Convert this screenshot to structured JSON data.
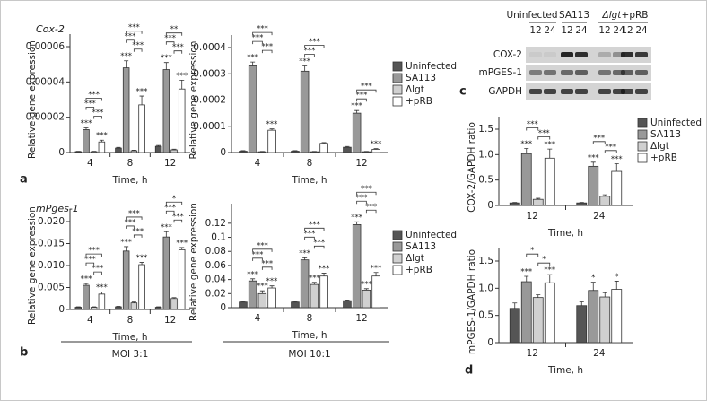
{
  "figure": {
    "panels": [
      "a",
      "b",
      "c",
      "d"
    ],
    "groups": [
      "MOI 3:1",
      "MOI 10:1"
    ],
    "blot": {
      "groups": [
        "Uninfected",
        "SA113",
        "Δlgt",
        "+pRB"
      ],
      "lanes": [
        "12",
        "24",
        "12",
        "24",
        "12",
        "24",
        "12",
        "24"
      ],
      "rows": [
        "COX-2",
        "mPGES-1",
        "GAPDH"
      ]
    }
  },
  "chart_data": [
    {
      "type": "bar",
      "title": "Cox-2",
      "y_label": "Relative gene expression",
      "x_label": "Time, h",
      "categories": [
        "4",
        "8",
        "12"
      ],
      "ylim": [
        0,
        6e-05
      ],
      "yticks": [
        0,
        2e-05,
        4e-05,
        6e-05
      ],
      "series": [
        {
          "name": "Uninfected",
          "color": "#555555",
          "values": [
            5e-07,
            2.5e-06,
            3.5e-06
          ],
          "errors": [
            2e-07,
            4e-07,
            5e-07
          ],
          "significance": [
            null,
            null,
            null
          ]
        },
        {
          "name": "SA113",
          "color": "#999999",
          "values": [
            1.3e-05,
            4.8e-05,
            4.7e-05
          ],
          "errors": [
            1e-06,
            4e-06,
            4e-06
          ],
          "significance": [
            "***",
            "***",
            "***"
          ]
        },
        {
          "name": "Δlgt",
          "color": "#d0d0d0",
          "values": [
            5e-07,
            1e-06,
            1.5e-06
          ],
          "errors": [
            2e-07,
            3e-07,
            4e-07
          ],
          "significance": [
            null,
            null,
            null
          ]
        },
        {
          "name": "+pRB",
          "color": "#ffffff",
          "values": [
            6e-06,
            2.7e-05,
            3.6e-05
          ],
          "errors": [
            1e-06,
            5e-06,
            5e-06
          ],
          "significance": [
            "***",
            "***",
            "***"
          ]
        }
      ],
      "comparisons": [
        {
          "category": 0,
          "between": [
            2,
            3
          ],
          "label": "***"
        },
        {
          "category": 0,
          "between": [
            1,
            2
          ],
          "label": "***"
        },
        {
          "category": 0,
          "between": [
            1,
            3
          ],
          "label": "***"
        },
        {
          "category": 1,
          "between": [
            2,
            3
          ],
          "label": "***"
        },
        {
          "category": 1,
          "between": [
            1,
            2
          ],
          "label": "***"
        },
        {
          "category": 1,
          "between": [
            1,
            3
          ],
          "label": "***"
        },
        {
          "category": 2,
          "between": [
            2,
            3
          ],
          "label": "***"
        },
        {
          "category": 2,
          "between": [
            1,
            2
          ],
          "label": "***"
        },
        {
          "category": 2,
          "between": [
            1,
            3
          ],
          "label": "**"
        }
      ]
    },
    {
      "type": "bar",
      "y_label": "Relative gene expression",
      "x_label": "Time, h",
      "legend": "right",
      "categories": [
        "4",
        "8",
        "12"
      ],
      "ylim": [
        0,
        0.0004
      ],
      "yticks": [
        0,
        0.0001,
        0.0002,
        0.0003,
        0.0004
      ],
      "series": [
        {
          "name": "Uninfected",
          "color": "#555555",
          "values": [
            5e-06,
            5e-06,
            2e-05
          ],
          "errors": [
            2e-06,
            2e-06,
            3e-06
          ],
          "significance": [
            null,
            null,
            null
          ]
        },
        {
          "name": "SA113",
          "color": "#999999",
          "values": [
            0.00033,
            0.00031,
            0.00015
          ],
          "errors": [
            1.5e-05,
            2e-05,
            1e-05
          ],
          "significance": [
            "***",
            "***",
            "***"
          ]
        },
        {
          "name": "Δlgt",
          "color": "#d0d0d0",
          "values": [
            3e-06,
            3e-06,
            3e-06
          ],
          "errors": [
            1e-06,
            1e-06,
            1e-06
          ],
          "significance": [
            null,
            null,
            null
          ]
        },
        {
          "name": "+pRB",
          "color": "#ffffff",
          "values": [
            8.5e-05,
            3.5e-05,
            1.2e-05
          ],
          "errors": [
            5e-06,
            3e-06,
            3e-06
          ],
          "significance": [
            "***",
            null,
            "***"
          ]
        }
      ],
      "comparisons": [
        {
          "category": 0,
          "between": [
            2,
            3
          ],
          "label": "***"
        },
        {
          "category": 0,
          "between": [
            1,
            2
          ],
          "label": "***"
        },
        {
          "category": 0,
          "between": [
            1,
            3
          ],
          "label": "***"
        },
        {
          "category": 1,
          "between": [
            1,
            2
          ],
          "label": "***"
        },
        {
          "category": 1,
          "between": [
            1,
            3
          ],
          "label": "***"
        },
        {
          "category": 2,
          "between": [
            1,
            2
          ],
          "label": "***"
        },
        {
          "category": 2,
          "between": [
            1,
            3
          ],
          "label": "***"
        }
      ]
    },
    {
      "type": "bar",
      "title": "mPges-1",
      "y_label": "Relative gene expression",
      "x_label": "Time, h",
      "categories": [
        "4",
        "8",
        "12"
      ],
      "ylim": [
        0,
        0.02
      ],
      "yticks": [
        0,
        0.005,
        {
          "value": 0.01,
          "label": "0.010"
        },
        0.015,
        {
          "value": 0.02,
          "label": "0.020"
        }
      ],
      "series": [
        {
          "name": "Uninfected",
          "color": "#555555",
          "values": [
            0.0005,
            0.0006,
            0.0005
          ],
          "errors": [
            0.0001,
            0.0001,
            0.0001
          ],
          "significance": [
            null,
            null,
            null
          ]
        },
        {
          "name": "SA113",
          "color": "#999999",
          "values": [
            0.0055,
            0.0133,
            0.0165
          ],
          "errors": [
            0.0004,
            0.001,
            0.0012
          ],
          "significance": [
            "***",
            "***",
            "***"
          ]
        },
        {
          "name": "Δlgt",
          "color": "#d0d0d0",
          "values": [
            0.0005,
            0.0015,
            0.0025
          ],
          "errors": [
            0.0001,
            0.0002,
            0.0002
          ],
          "significance": [
            null,
            null,
            null
          ]
        },
        {
          "name": "+pRB",
          "color": "#ffffff",
          "values": [
            0.0035,
            0.0102,
            0.0136
          ],
          "errors": [
            0.0005,
            0.0005,
            0.0005
          ],
          "significance": [
            "***",
            "***",
            "***"
          ]
        }
      ],
      "comparisons": [
        {
          "category": 0,
          "between": [
            2,
            3
          ],
          "label": "***"
        },
        {
          "category": 0,
          "between": [
            1,
            2
          ],
          "label": "***"
        },
        {
          "category": 0,
          "between": [
            1,
            3
          ],
          "label": "***"
        },
        {
          "category": 1,
          "between": [
            2,
            3
          ],
          "label": "***"
        },
        {
          "category": 1,
          "between": [
            1,
            2
          ],
          "label": "***"
        },
        {
          "category": 1,
          "between": [
            1,
            3
          ],
          "label": "***"
        },
        {
          "category": 2,
          "between": [
            2,
            3
          ],
          "label": "***"
        },
        {
          "category": 2,
          "between": [
            1,
            2
          ],
          "label": "***"
        },
        {
          "category": 2,
          "between": [
            1,
            3
          ],
          "label": "*"
        }
      ]
    },
    {
      "type": "bar",
      "y_label": "Relative gene expression",
      "x_label": "Time, h",
      "legend": "right",
      "categories": [
        "4",
        "8",
        "12"
      ],
      "ylim": [
        0,
        0.13
      ],
      "yticks": [
        0,
        0.02,
        0.04,
        0.06,
        0.08,
        0.1,
        0.12
      ],
      "series": [
        {
          "name": "Uninfected",
          "color": "#555555",
          "values": [
            0.008,
            0.008,
            0.01
          ],
          "errors": [
            0.001,
            0.001,
            0.001
          ],
          "significance": [
            null,
            null,
            null
          ]
        },
        {
          "name": "SA113",
          "color": "#999999",
          "values": [
            0.038,
            0.068,
            0.118
          ],
          "errors": [
            0.003,
            0.003,
            0.004
          ],
          "significance": [
            "***",
            "***",
            "***"
          ]
        },
        {
          "name": "Δlgt",
          "color": "#d0d0d0",
          "values": [
            0.02,
            0.033,
            0.025
          ],
          "errors": [
            0.004,
            0.003,
            0.002
          ],
          "significance": [
            "***",
            "***",
            "***"
          ]
        },
        {
          "name": "+pRB",
          "color": "#ffffff",
          "values": [
            0.028,
            0.045,
            0.045
          ],
          "errors": [
            0.003,
            0.004,
            0.005
          ],
          "significance": [
            "***",
            "***",
            "***"
          ]
        }
      ],
      "comparisons": [
        {
          "category": 0,
          "between": [
            2,
            3
          ],
          "label": "***"
        },
        {
          "category": 0,
          "between": [
            1,
            2
          ],
          "label": "***"
        },
        {
          "category": 0,
          "between": [
            1,
            3
          ],
          "label": "***"
        },
        {
          "category": 1,
          "between": [
            2,
            3
          ],
          "label": "***"
        },
        {
          "category": 1,
          "between": [
            1,
            2
          ],
          "label": "***"
        },
        {
          "category": 1,
          "between": [
            1,
            3
          ],
          "label": "***"
        },
        {
          "category": 2,
          "between": [
            2,
            3
          ],
          "label": "***"
        },
        {
          "category": 2,
          "between": [
            1,
            2
          ],
          "label": "***"
        },
        {
          "category": 2,
          "between": [
            1,
            3
          ],
          "label": "***"
        }
      ]
    },
    {
      "type": "bar",
      "y_label": "COX-2/GAPDH ratio",
      "x_label": "Time, h",
      "legend": "right",
      "categories": [
        "12",
        "24"
      ],
      "ylim": [
        0,
        1.5
      ],
      "yticks": [
        0,
        0.5,
        {
          "value": 1,
          "label": "1.0"
        },
        1.5
      ],
      "series": [
        {
          "name": "Uninfected",
          "color": "#555555",
          "values": [
            0.05,
            0.05
          ],
          "errors": [
            0.01,
            0.01
          ],
          "significance": [
            null,
            null
          ]
        },
        {
          "name": "SA113",
          "color": "#999999",
          "values": [
            1.02,
            0.77
          ],
          "errors": [
            0.1,
            0.08
          ],
          "significance": [
            "***",
            "***"
          ]
        },
        {
          "name": "Δlgt",
          "color": "#d0d0d0",
          "values": [
            0.12,
            0.18
          ],
          "errors": [
            0.02,
            0.03
          ],
          "significance": [
            null,
            null
          ]
        },
        {
          "name": "+pRB",
          "color": "#ffffff",
          "values": [
            0.93,
            0.67
          ],
          "errors": [
            0.18,
            0.15
          ],
          "significance": [
            "***",
            "***"
          ]
        }
      ],
      "comparisons": [
        {
          "category": 0,
          "between": [
            2,
            3
          ],
          "label": "***"
        },
        {
          "category": 0,
          "between": [
            1,
            2
          ],
          "label": "***"
        },
        {
          "category": 1,
          "between": [
            2,
            3
          ],
          "label": "***"
        },
        {
          "category": 1,
          "between": [
            1,
            2
          ],
          "label": "***"
        }
      ]
    },
    {
      "type": "bar",
      "y_label": "mPGES-1/GAPDH ratio",
      "x_label": "Time, h",
      "categories": [
        "12",
        "24"
      ],
      "ylim": [
        0,
        1.5
      ],
      "yticks": [
        0,
        0.5,
        {
          "value": 1,
          "label": "1.0"
        },
        1.5
      ],
      "series": [
        {
          "name": "Uninfected",
          "color": "#555555",
          "values": [
            0.63,
            0.68
          ],
          "errors": [
            0.1,
            0.07
          ],
          "significance": [
            null,
            null
          ]
        },
        {
          "name": "SA113",
          "color": "#999999",
          "values": [
            1.12,
            0.96
          ],
          "errors": [
            0.1,
            0.15
          ],
          "significance": [
            "***",
            "*"
          ]
        },
        {
          "name": "Δlgt",
          "color": "#d0d0d0",
          "values": [
            0.83,
            0.84
          ],
          "errors": [
            0.05,
            0.08
          ],
          "significance": [
            null,
            null
          ]
        },
        {
          "name": "+pRB",
          "color": "#ffffff",
          "values": [
            1.1,
            0.98
          ],
          "errors": [
            0.15,
            0.15
          ],
          "significance": [
            "***",
            "*"
          ]
        }
      ],
      "comparisons": [
        {
          "category": 0,
          "between": [
            2,
            3
          ],
          "label": "*"
        },
        {
          "category": 0,
          "between": [
            1,
            2
          ],
          "label": "*"
        }
      ]
    }
  ]
}
